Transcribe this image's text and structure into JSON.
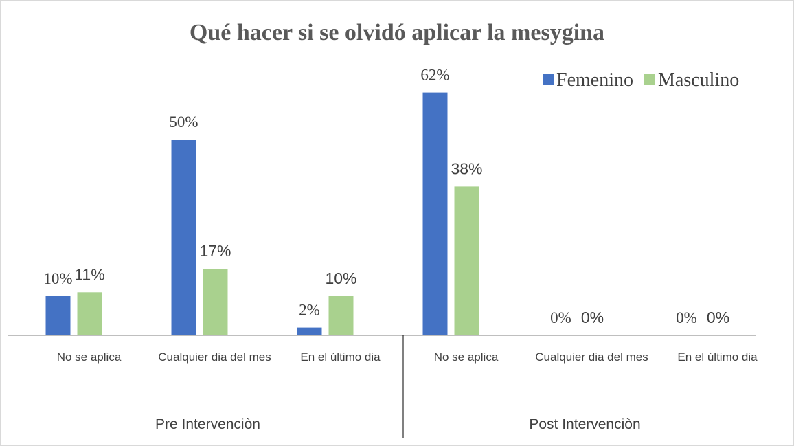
{
  "chart_data": {
    "type": "bar",
    "title": "Qué hacer si se olvidó aplicar  la mesygina",
    "categories": [
      "No se  aplica",
      "Cualquier dia del mes",
      "En el último dia",
      "No se  aplica",
      "Cualquier dia del mes",
      "En el último dia"
    ],
    "groups": [
      "Pre Intervenciòn",
      "Post Intervenciòn"
    ],
    "series": [
      {
        "name": "Femenino",
        "color": "#4472c4",
        "values": [
          10,
          50,
          2,
          62,
          0,
          0
        ],
        "value_labels": [
          "10%",
          "50%",
          "2%",
          "62%",
          "0%",
          "0%"
        ]
      },
      {
        "name": "Masculino",
        "color": "#a9d18e",
        "values": [
          11,
          17,
          10,
          38,
          0,
          0
        ],
        "value_labels": [
          "11%",
          "17%",
          "10%",
          "38%",
          "0%",
          "0%"
        ]
      }
    ],
    "legend": "top-right"
  }
}
